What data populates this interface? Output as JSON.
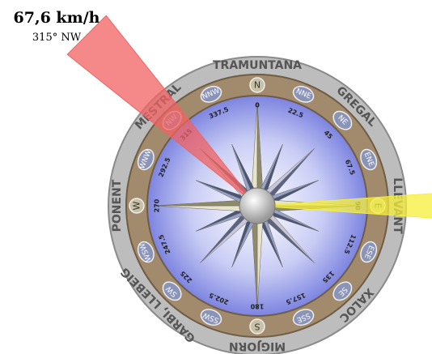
{
  "speed_label": "67,6 km/h",
  "direction_label": "315° NW",
  "winds": [
    "TRAMUNTANA",
    "GREGAL",
    "LLEVANT",
    "XALOC",
    "MIGJORN",
    "GARBI, LLEBEIG",
    "PONENT",
    "MESTRAL"
  ],
  "points": [
    {
      "name": "N",
      "degrees": 0
    },
    {
      "name": "NNE",
      "degrees": 22.5
    },
    {
      "name": "NE",
      "degrees": 45
    },
    {
      "name": "ENE",
      "degrees": 67.5
    },
    {
      "name": "E",
      "degrees": 90
    },
    {
      "name": "ESE",
      "degrees": 112.5
    },
    {
      "name": "SE",
      "degrees": 135
    },
    {
      "name": "SSE",
      "degrees": 157.5
    },
    {
      "name": "S",
      "degrees": 180
    },
    {
      "name": "SSW",
      "degrees": 202.5
    },
    {
      "name": "SW",
      "degrees": 225
    },
    {
      "name": "WSW",
      "degrees": 247.5
    },
    {
      "name": "W",
      "degrees": 270
    },
    {
      "name": "WNW",
      "degrees": 292.5
    },
    {
      "name": "NW",
      "degrees": 315
    },
    {
      "name": "NNW",
      "degrees": 337.5
    }
  ]
}
